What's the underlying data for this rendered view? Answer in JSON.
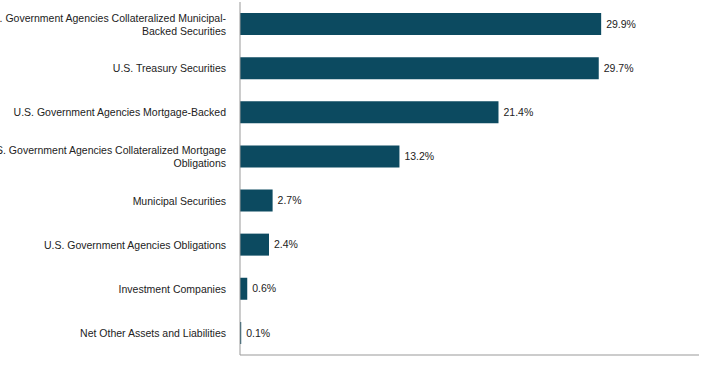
{
  "chart_data": {
    "type": "bar",
    "orientation": "horizontal",
    "categories": [
      "U.S. Government Agencies Collateralized Municipal-Backed Securities",
      "U.S. Treasury Securities",
      "U.S. Government Agencies Mortgage-Backed",
      "U.S. Government Agencies Collateralized Mortgage Obligations",
      "Municipal Securities",
      "U.S. Government Agencies Obligations",
      "Investment Companies",
      "Net Other Assets and Liabilities"
    ],
    "values": [
      29.9,
      29.7,
      21.4,
      13.2,
      2.7,
      2.4,
      0.6,
      0.1
    ],
    "value_labels": [
      "29.9%",
      "29.7%",
      "21.4%",
      "13.2%",
      "2.7%",
      "2.4%",
      "0.6%",
      "0.1%"
    ],
    "data_labels": true,
    "color": "#0c4a60",
    "xlim": [
      0,
      38
    ],
    "grid": false,
    "tick_labels": "y"
  }
}
